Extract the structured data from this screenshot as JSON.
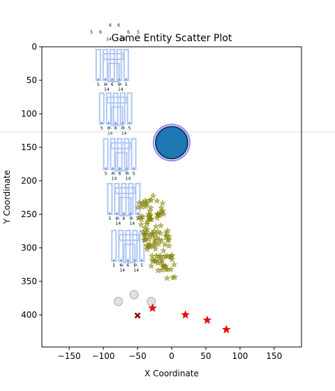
{
  "chart_data": {
    "type": "scatter",
    "title": "Game Entity Scatter Plot",
    "xlabel": "X Coordinate",
    "ylabel": "Y Coordinate",
    "xlim": [
      -190,
      190
    ],
    "ylim": [
      448,
      0
    ],
    "y_inverted": true,
    "grid": false,
    "x_ticks": [
      -150,
      -100,
      -50,
      0,
      50,
      100,
      150
    ],
    "y_ticks": [
      0,
      50,
      100,
      150,
      200,
      250,
      300,
      350,
      400
    ],
    "horizontal_line": {
      "y": 127,
      "color": "#dddddd"
    },
    "circle_entity": {
      "x": 0,
      "y": 143,
      "fill": "#1f77b4",
      "ring": "#7b68ee"
    },
    "gray_circles": [
      {
        "x": -78,
        "y": 380
      },
      {
        "x": -55,
        "y": 370
      },
      {
        "x": -30,
        "y": 380
      }
    ],
    "red_stars": [
      {
        "x": -28,
        "y": 390
      },
      {
        "x": 20,
        "y": 400
      },
      {
        "x": 52,
        "y": 408
      },
      {
        "x": 80,
        "y": 422
      }
    ],
    "x_marker": {
      "x": -50,
      "y": 401,
      "color": "#8b0000"
    },
    "olive_star_cluster": {
      "center_x": -22,
      "center_y": 285,
      "count": 120,
      "color": "#808000"
    },
    "structures": [
      {
        "x": -85,
        "y": 0,
        "labels_top": [
          "5",
          "6",
          "6",
          "6",
          "5"
        ],
        "labels_bottom": [
          "5",
          "6",
          "6",
          "6",
          "5"
        ],
        "labels_base": [
          "14",
          "14"
        ]
      },
      {
        "x": -80,
        "y": 65,
        "labels_top": [],
        "labels_bottom": [
          "5",
          "6",
          "6",
          "6",
          "5"
        ],
        "labels_base": [
          "14",
          "14"
        ]
      },
      {
        "x": -74,
        "y": 133,
        "labels_top": [],
        "labels_bottom": [
          "5",
          "6",
          "6",
          "6",
          "5"
        ],
        "labels_base": [
          "14",
          "14"
        ]
      },
      {
        "x": -68,
        "y": 200,
        "labels_top": [],
        "labels_bottom": [
          "5",
          "6",
          "6",
          "6",
          "5"
        ],
        "labels_base": [
          "14",
          "14"
        ]
      },
      {
        "x": -62,
        "y": 270,
        "labels_top": [],
        "labels_bottom": [
          "5",
          "6",
          "6",
          "6",
          "5"
        ],
        "labels_base": [
          "14",
          "14"
        ]
      }
    ],
    "top_labels": [
      "6",
      "6",
      "5",
      "6",
      "6",
      "5",
      "14",
      "14"
    ]
  }
}
